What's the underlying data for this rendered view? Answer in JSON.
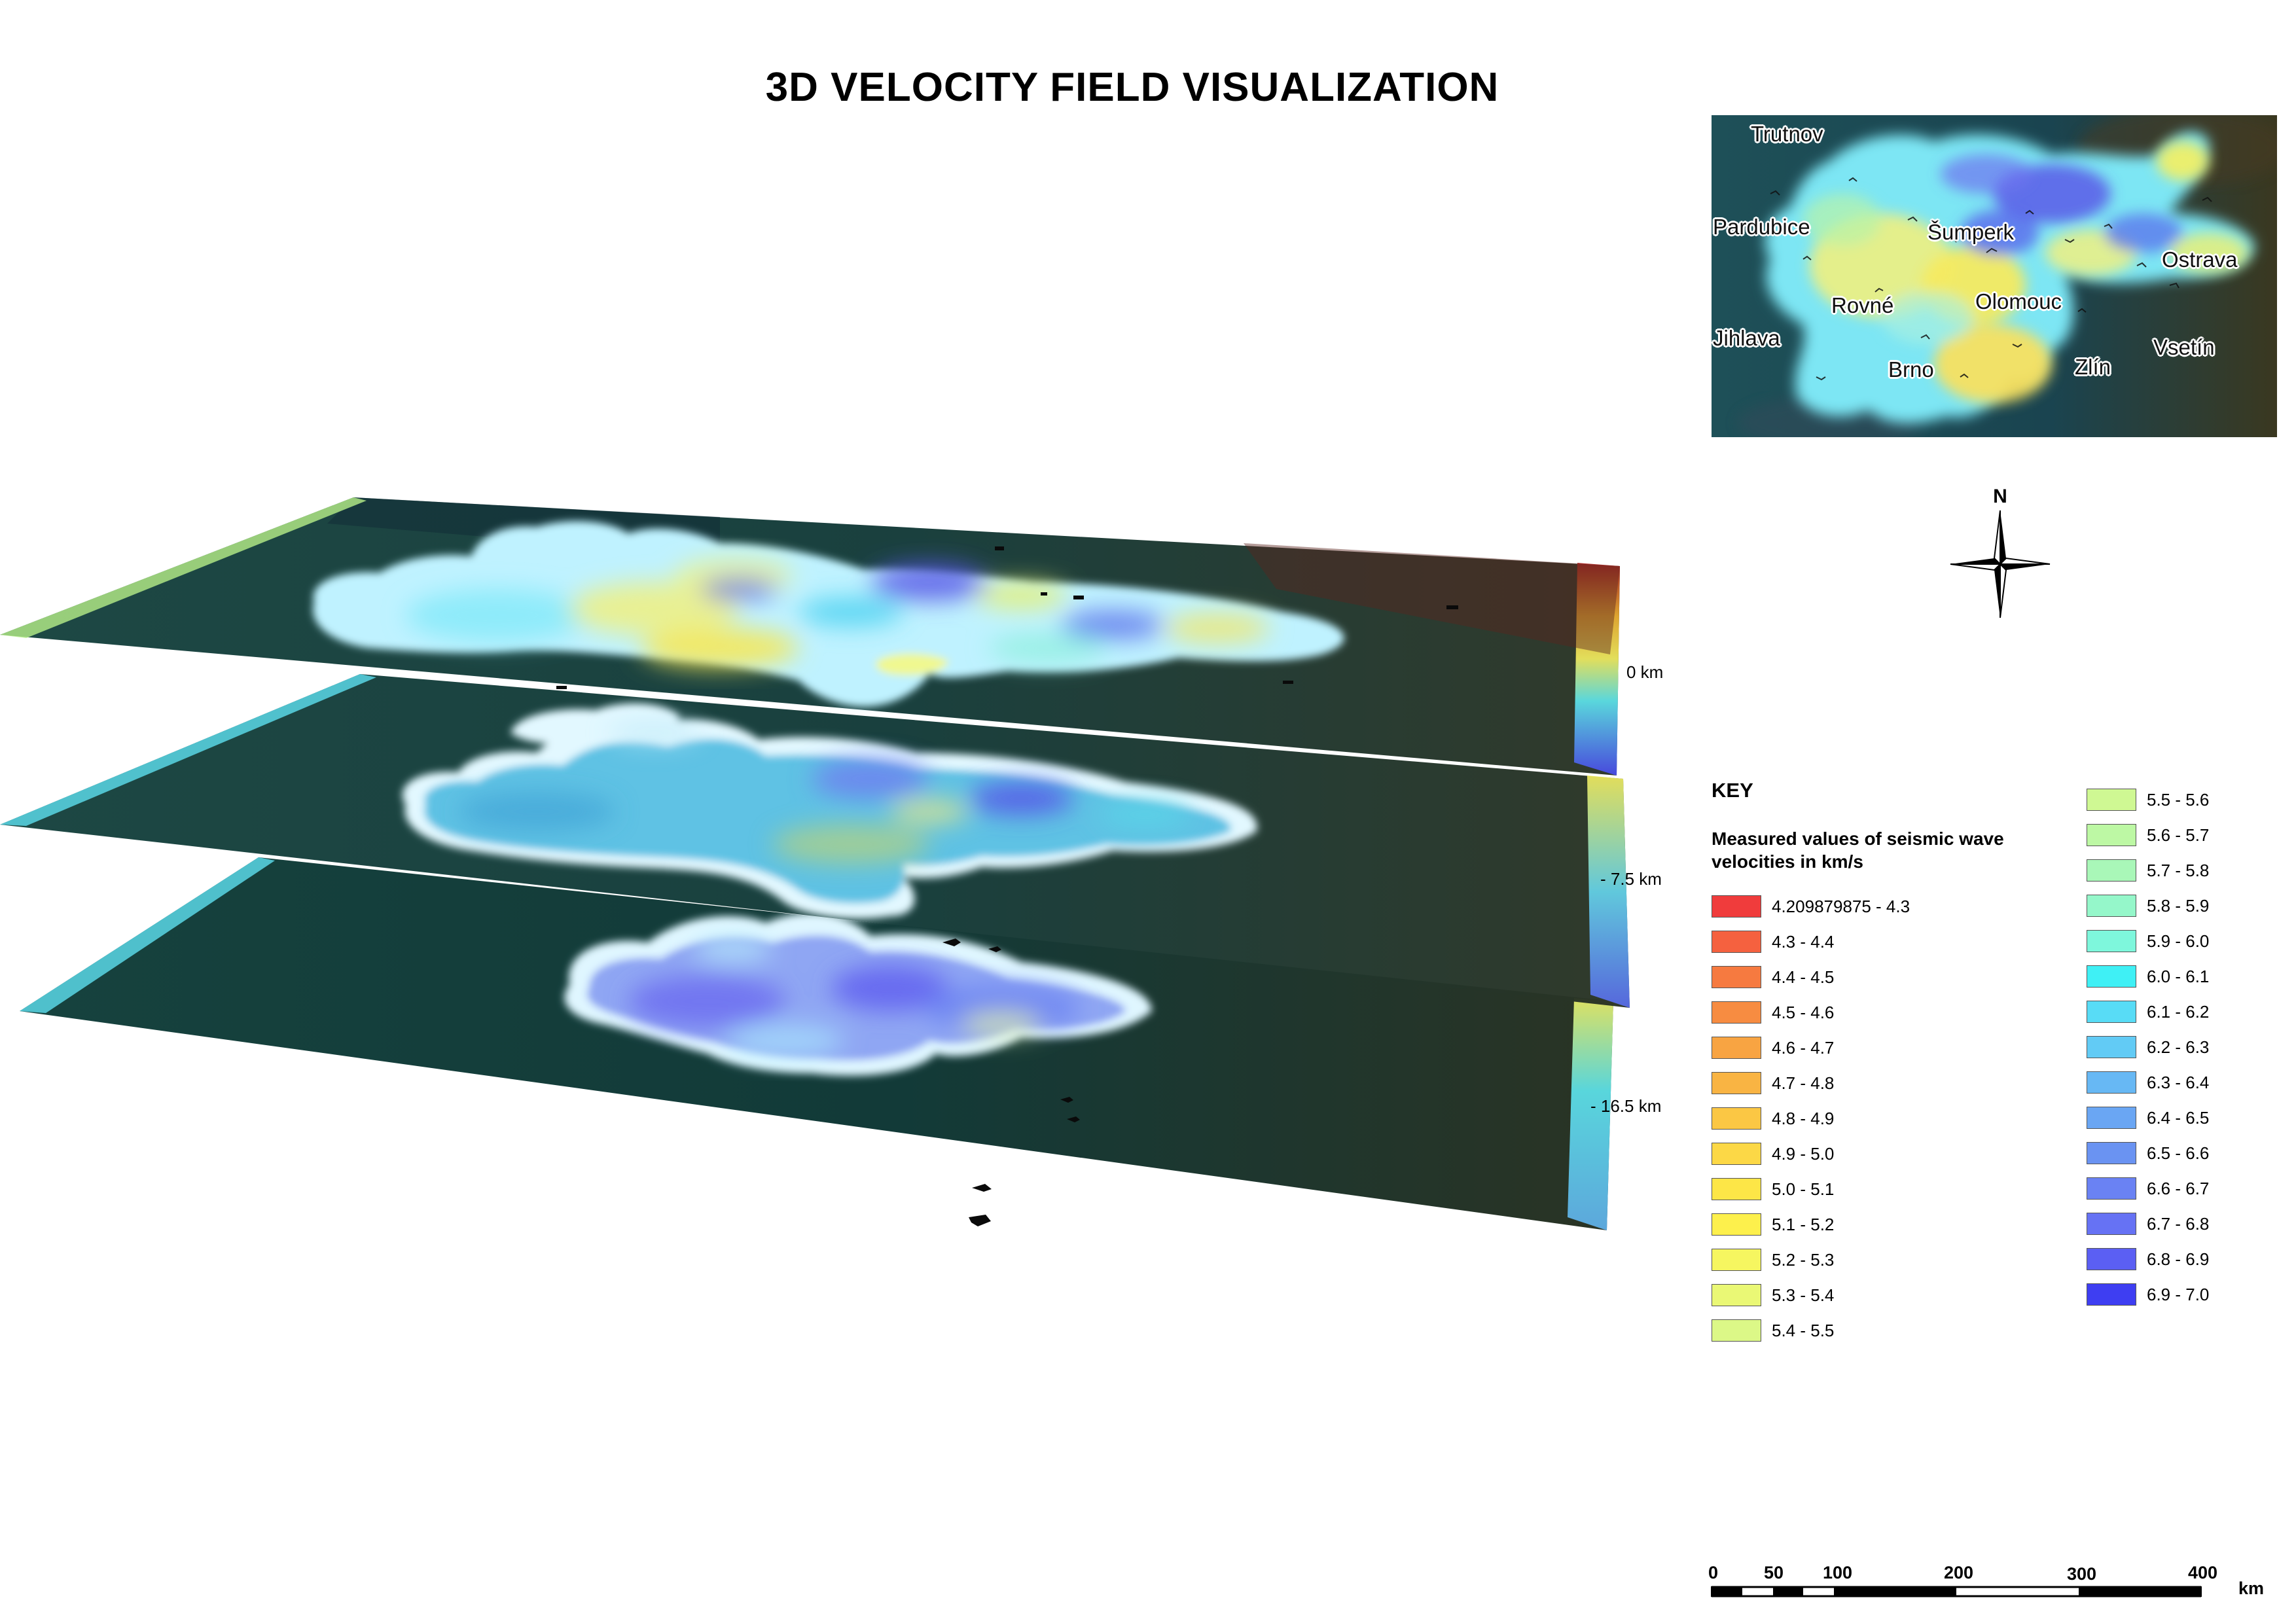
{
  "title": "3D VELOCITY FIELD VISUALIZATION",
  "depth_labels": [
    "0 km",
    "- 7.5 km",
    "- 16.5 km"
  ],
  "inset_map": {
    "cities": [
      "Trutnov",
      "Pardubice",
      "Šumperk",
      "Ostrava",
      "Rovné",
      "Olomouc",
      "Jihlava",
      "Vsetín",
      "Brno",
      "Zlín"
    ]
  },
  "north_arrow": {
    "label": "N"
  },
  "key": {
    "title": "KEY",
    "subtitle": "Measured values of seismic wave velocities in km/s",
    "classes": [
      {
        "label": "4.209879875 - 4.3",
        "color": "#f03c3c"
      },
      {
        "label": "4.3 - 4.4",
        "color": "#f5613f"
      },
      {
        "label": "4.4 - 4.5",
        "color": "#f67a40"
      },
      {
        "label": "4.5 - 4.6",
        "color": "#f78c41"
      },
      {
        "label": "4.6 - 4.7",
        "color": "#f8a442"
      },
      {
        "label": "4.7 - 4.8",
        "color": "#f9b443"
      },
      {
        "label": "4.8 - 4.9",
        "color": "#fbc744"
      },
      {
        "label": "4.9 - 5.0",
        "color": "#fcd846"
      },
      {
        "label": "5.0 - 5.1",
        "color": "#fde647"
      },
      {
        "label": "5.1 - 5.2",
        "color": "#fdf04c"
      },
      {
        "label": "5.2 - 5.3",
        "color": "#f6f660"
      },
      {
        "label": "5.3 - 5.4",
        "color": "#eaf875"
      },
      {
        "label": "5.4 - 5.5",
        "color": "#dcf887"
      },
      {
        "label": "5.5 - 5.6",
        "color": "#cff893"
      },
      {
        "label": "5.6 - 5.7",
        "color": "#bdf8a4"
      },
      {
        "label": "5.7 - 5.8",
        "color": "#a9f7b8"
      },
      {
        "label": "5.8 - 5.9",
        "color": "#95f7ca"
      },
      {
        "label": "5.9 - 6.0",
        "color": "#7ef7dc"
      },
      {
        "label": "6.0 - 6.1",
        "color": "#3ff0f5"
      },
      {
        "label": "6.1 - 6.2",
        "color": "#58dcf6"
      },
      {
        "label": "6.2 - 6.3",
        "color": "#62cbf5"
      },
      {
        "label": "6.3 - 6.4",
        "color": "#67b8f4"
      },
      {
        "label": "6.4 - 6.5",
        "color": "#6aa6f3"
      },
      {
        "label": "6.5 - 6.6",
        "color": "#6a93f2"
      },
      {
        "label": "6.6 - 6.7",
        "color": "#6a82f3"
      },
      {
        "label": "6.7 - 6.8",
        "color": "#6672f4"
      },
      {
        "label": "6.8 - 6.9",
        "color": "#5b5ff3"
      },
      {
        "label": "6.9 - 7.0",
        "color": "#3e3ef2"
      }
    ]
  },
  "scale_bar": {
    "ticks": [
      "0",
      "50",
      "100",
      "200",
      "300",
      "400"
    ],
    "unit": "km"
  }
}
